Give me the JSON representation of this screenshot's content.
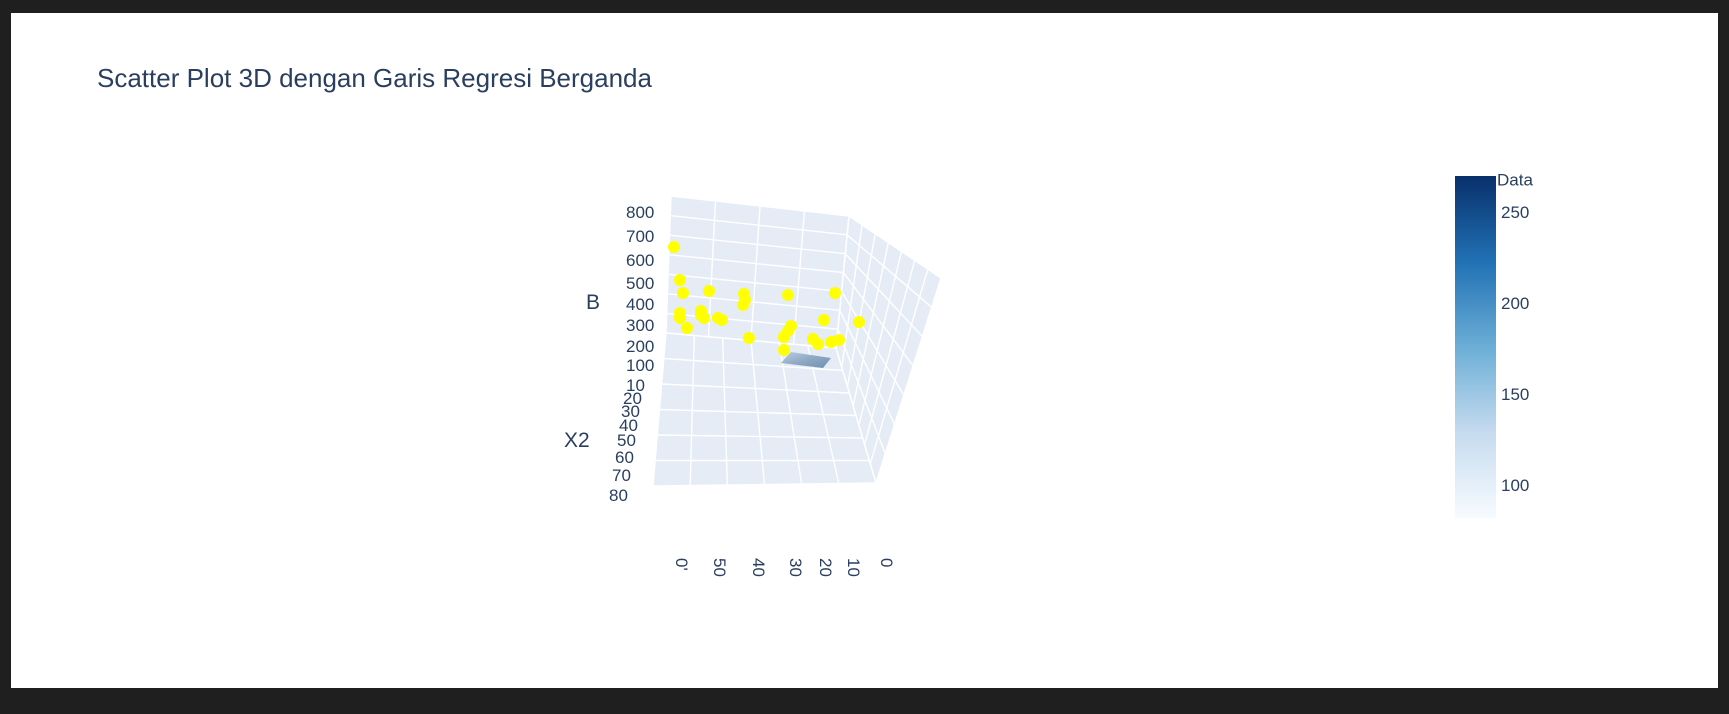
{
  "chart_data": {
    "type": "scatter3d",
    "title": "Scatter Plot 3D dengan Garis Regresi Berganda",
    "axes": {
      "z_title": "B",
      "y_title": "X2",
      "z_ticks": [
        "800",
        "700",
        "600",
        "500",
        "400",
        "300",
        "200",
        "100"
      ],
      "y_ticks": [
        "10",
        "20",
        "30",
        "40",
        "50",
        "60",
        "70",
        "80"
      ],
      "x_ticks": [
        "0'",
        "50",
        "40",
        "30",
        "20",
        "10",
        "0"
      ]
    },
    "colorbar": {
      "title": "Data",
      "ticks": [
        "250",
        "200",
        "150",
        "100"
      ],
      "range": [
        68,
        265
      ],
      "colors": [
        "#f7fbff",
        "#c6dbef",
        "#6baed6",
        "#2171b5",
        "#08306b"
      ]
    },
    "marker_color": "#ffff00",
    "scene_background": "#e5ecf6"
  }
}
